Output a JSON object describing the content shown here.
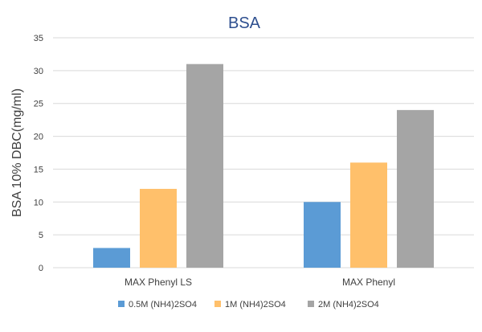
{
  "chart_data": {
    "type": "bar",
    "title": "BSA",
    "xlabel": "",
    "ylabel": "BSA 10% DBC(mg/ml)",
    "categories": [
      "MAX Phenyl LS",
      "MAX Phenyl"
    ],
    "series": [
      {
        "name": "0.5M (NH4)2SO4",
        "values": [
          3,
          10
        ],
        "color": "#5b9bd5"
      },
      {
        "name": "1M (NH4)2SO4",
        "values": [
          12,
          16
        ],
        "color": "#ffc06b"
      },
      {
        "name": "2M (NH4)2SO4",
        "values": [
          31,
          24
        ],
        "color": "#a5a5a5"
      }
    ],
    "ylim": [
      0,
      35
    ],
    "yticks": [
      0,
      5,
      10,
      15,
      20,
      25,
      30,
      35
    ],
    "grid": true,
    "legend_position": "bottom",
    "colors": {
      "title": "#2e4f8f",
      "grid": "#d9d9d9",
      "text": "#404040"
    }
  }
}
